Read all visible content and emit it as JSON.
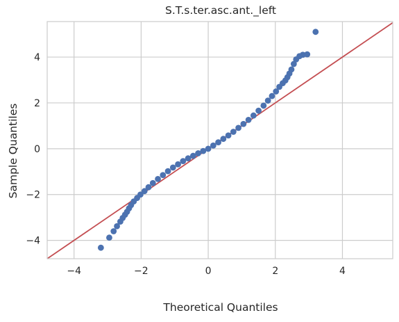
{
  "chart_data": {
    "type": "scatter",
    "title": "S.T.s.ter.asc.ant._left",
    "xlabel": "Theoretical Quantiles",
    "ylabel": "Sample Quantiles",
    "xlim": [
      -4.8,
      5.5
    ],
    "ylim": [
      -4.8,
      5.55
    ],
    "xticks": [
      -4,
      -2,
      0,
      2,
      4
    ],
    "xtick_labels": [
      "−4",
      "−2",
      "0",
      "2",
      "4"
    ],
    "yticks": [
      -4,
      -2,
      0,
      2,
      4
    ],
    "ytick_labels": [
      "−4",
      "−2",
      "0",
      "2",
      "4"
    ],
    "grid": true,
    "point_color": "#4c72b0",
    "line_color": "#c44e52",
    "reference_line": {
      "slope": 1,
      "intercept": 0
    },
    "x": [
      -3.2,
      -2.95,
      -2.82,
      -2.72,
      -2.62,
      -2.55,
      -2.48,
      -2.42,
      -2.36,
      -2.3,
      -2.22,
      -2.12,
      -2.02,
      -1.9,
      -1.78,
      -1.65,
      -1.5,
      -1.35,
      -1.2,
      -1.05,
      -0.9,
      -0.75,
      -0.6,
      -0.45,
      -0.3,
      -0.15,
      0.0,
      0.15,
      0.3,
      0.45,
      0.6,
      0.75,
      0.9,
      1.05,
      1.2,
      1.35,
      1.5,
      1.65,
      1.78,
      1.9,
      2.02,
      2.12,
      2.22,
      2.3,
      2.36,
      2.42,
      2.48,
      2.55,
      2.62,
      2.72,
      2.82,
      2.95,
      3.2
    ],
    "y": [
      -4.32,
      -3.88,
      -3.6,
      -3.38,
      -3.18,
      -3.02,
      -2.88,
      -2.75,
      -2.6,
      -2.46,
      -2.3,
      -2.15,
      -2.0,
      -1.85,
      -1.68,
      -1.5,
      -1.32,
      -1.15,
      -0.98,
      -0.82,
      -0.68,
      -0.54,
      -0.42,
      -0.31,
      -0.2,
      -0.1,
      0.0,
      0.14,
      0.28,
      0.43,
      0.58,
      0.74,
      0.91,
      1.08,
      1.26,
      1.45,
      1.66,
      1.88,
      2.1,
      2.3,
      2.5,
      2.7,
      2.86,
      2.98,
      3.12,
      3.28,
      3.46,
      3.7,
      3.9,
      4.04,
      4.1,
      4.12,
      5.1
    ]
  }
}
